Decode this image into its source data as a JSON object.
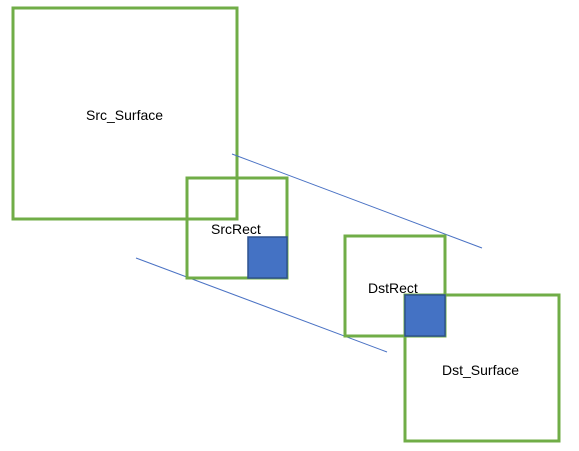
{
  "labels": {
    "src_surface": "Src_Surface",
    "src_rect": "SrcRect",
    "dst_rect": "DstRect",
    "dst_surface": "Dst_Surface"
  },
  "colors": {
    "box_border": "#70ad47",
    "square_fill": "#4472c4",
    "line": "#4a72c4"
  }
}
